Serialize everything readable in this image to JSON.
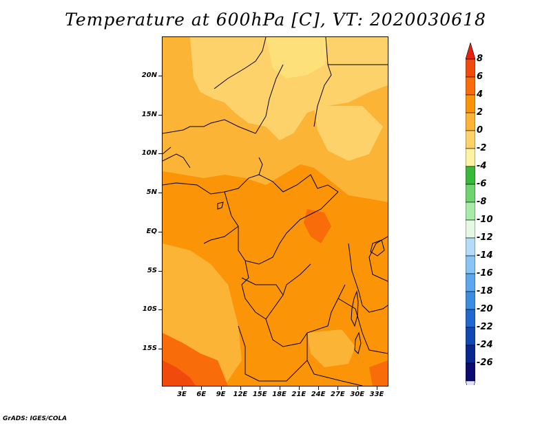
{
  "title": "Temperature at 600hPa [C], VT: 2020030618",
  "credit": "GrADS: IGES/COLA",
  "map": {
    "lat_labels": [
      "20N",
      "15N",
      "10N",
      "5N",
      "EQ",
      "5S",
      "10S",
      "15S"
    ],
    "lon_labels": [
      "3E",
      "6E",
      "9E",
      "12E",
      "15E",
      "18E",
      "21E",
      "24E",
      "27E",
      "30E",
      "33E"
    ]
  },
  "colorbar": {
    "labels": [
      "8",
      "6",
      "4",
      "2",
      "0",
      "-2",
      "-4",
      "-6",
      "-8",
      "-10",
      "-12",
      "-14",
      "-16",
      "-18",
      "-20",
      "-22",
      "-24",
      "-26"
    ],
    "colors": [
      "#e8200c",
      "#f04a0c",
      "#f86c0a",
      "#fb9406",
      "#fbb436",
      "#fdd26a",
      "#fff2a2",
      "#3ab83a",
      "#6fd46f",
      "#a8eaa8",
      "#e4f8e4",
      "#b4dcf8",
      "#88c4f4",
      "#5ca8ec",
      "#3c8ce0",
      "#2068d0",
      "#1048b4",
      "#082890",
      "#0c0c70",
      "#e2e2f8"
    ]
  }
}
